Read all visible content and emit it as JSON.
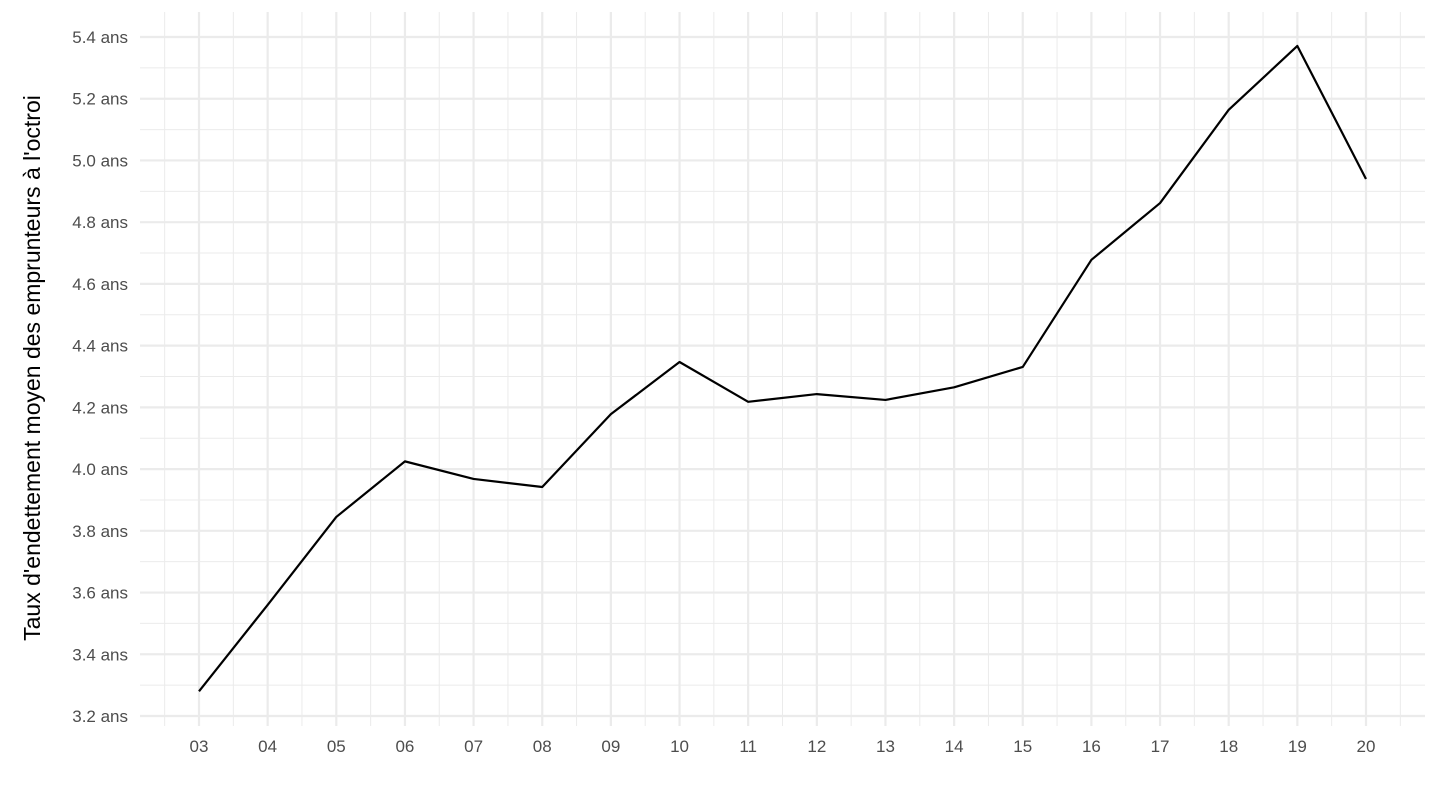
{
  "chart_data": {
    "type": "line",
    "title": "",
    "xlabel": "",
    "ylabel": "Taux d'endettement moyen des emprunteurs à l'octroi",
    "categories": [
      "03",
      "04",
      "05",
      "06",
      "07",
      "08",
      "09",
      "10",
      "11",
      "12",
      "13",
      "14",
      "15",
      "16",
      "17",
      "18",
      "19",
      "20"
    ],
    "series": [
      {
        "values": [
          3.28,
          3.56,
          3.845,
          4.025,
          3.968,
          3.942,
          4.178,
          4.347,
          4.218,
          4.243,
          4.224,
          4.265,
          4.331,
          4.678,
          4.862,
          5.164,
          5.371,
          4.94
        ]
      }
    ],
    "yticks": [
      3.2,
      3.4,
      3.6,
      3.8,
      4.0,
      4.2,
      4.4,
      4.6,
      4.8,
      5.0,
      5.2,
      5.4
    ],
    "ytick_suffix": " ans",
    "ylim": [
      3.2,
      5.4
    ],
    "grid": true,
    "line_color": "#000000",
    "grid_color": "#ebebeb"
  }
}
